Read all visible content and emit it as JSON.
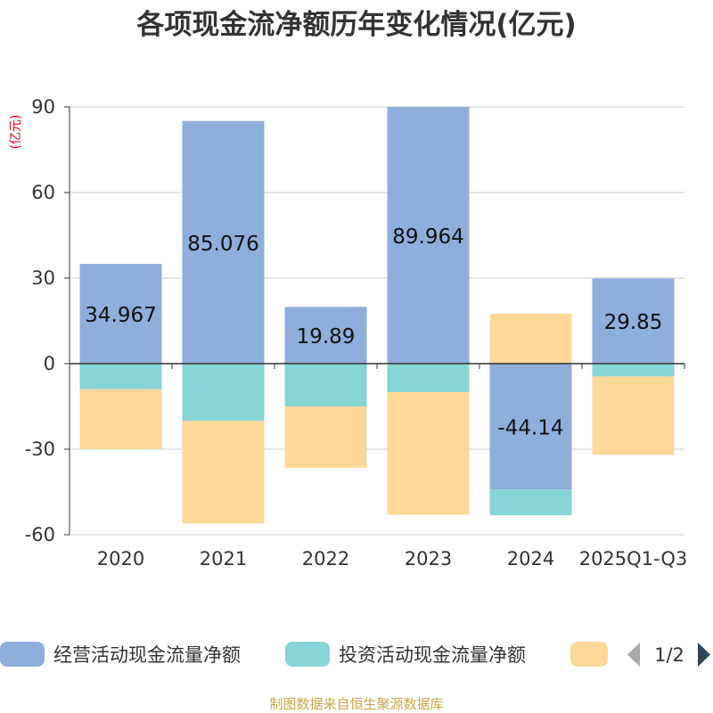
{
  "chart_data": {
    "type": "bar",
    "stacked": true,
    "title": "各项现金流净额历年变化情况(亿元)",
    "ylabel": "(亿元)",
    "ylim": [
      -60,
      90
    ],
    "yticks": [
      90,
      60,
      30,
      0,
      -30,
      -60
    ],
    "grid": true,
    "legend_position": "bottom",
    "categories": [
      "2020",
      "2021",
      "2022",
      "2023",
      "2024",
      "2025Q1-Q3"
    ],
    "series": [
      {
        "name": "经营活动现金流量净额",
        "color": "#8eaedb",
        "values": [
          34.967,
          85.076,
          19.89,
          89.964,
          -44.14,
          29.85
        ],
        "labels": [
          "34.967",
          "85.076",
          "19.89",
          "89.964",
          "-44.14",
          "29.85"
        ]
      },
      {
        "name": "投资活动现金流量净额",
        "color": "#86d4d6",
        "values": [
          -9,
          -20,
          -15,
          -10,
          -9,
          -4.5
        ]
      },
      {
        "name": "",
        "color": "#fed898",
        "values": [
          -21,
          -36,
          -21.5,
          -43,
          17.5,
          -27.5
        ]
      }
    ]
  },
  "legend": {
    "page_label": "1/2"
  },
  "source": "制图数据来自恒生聚源数据库"
}
